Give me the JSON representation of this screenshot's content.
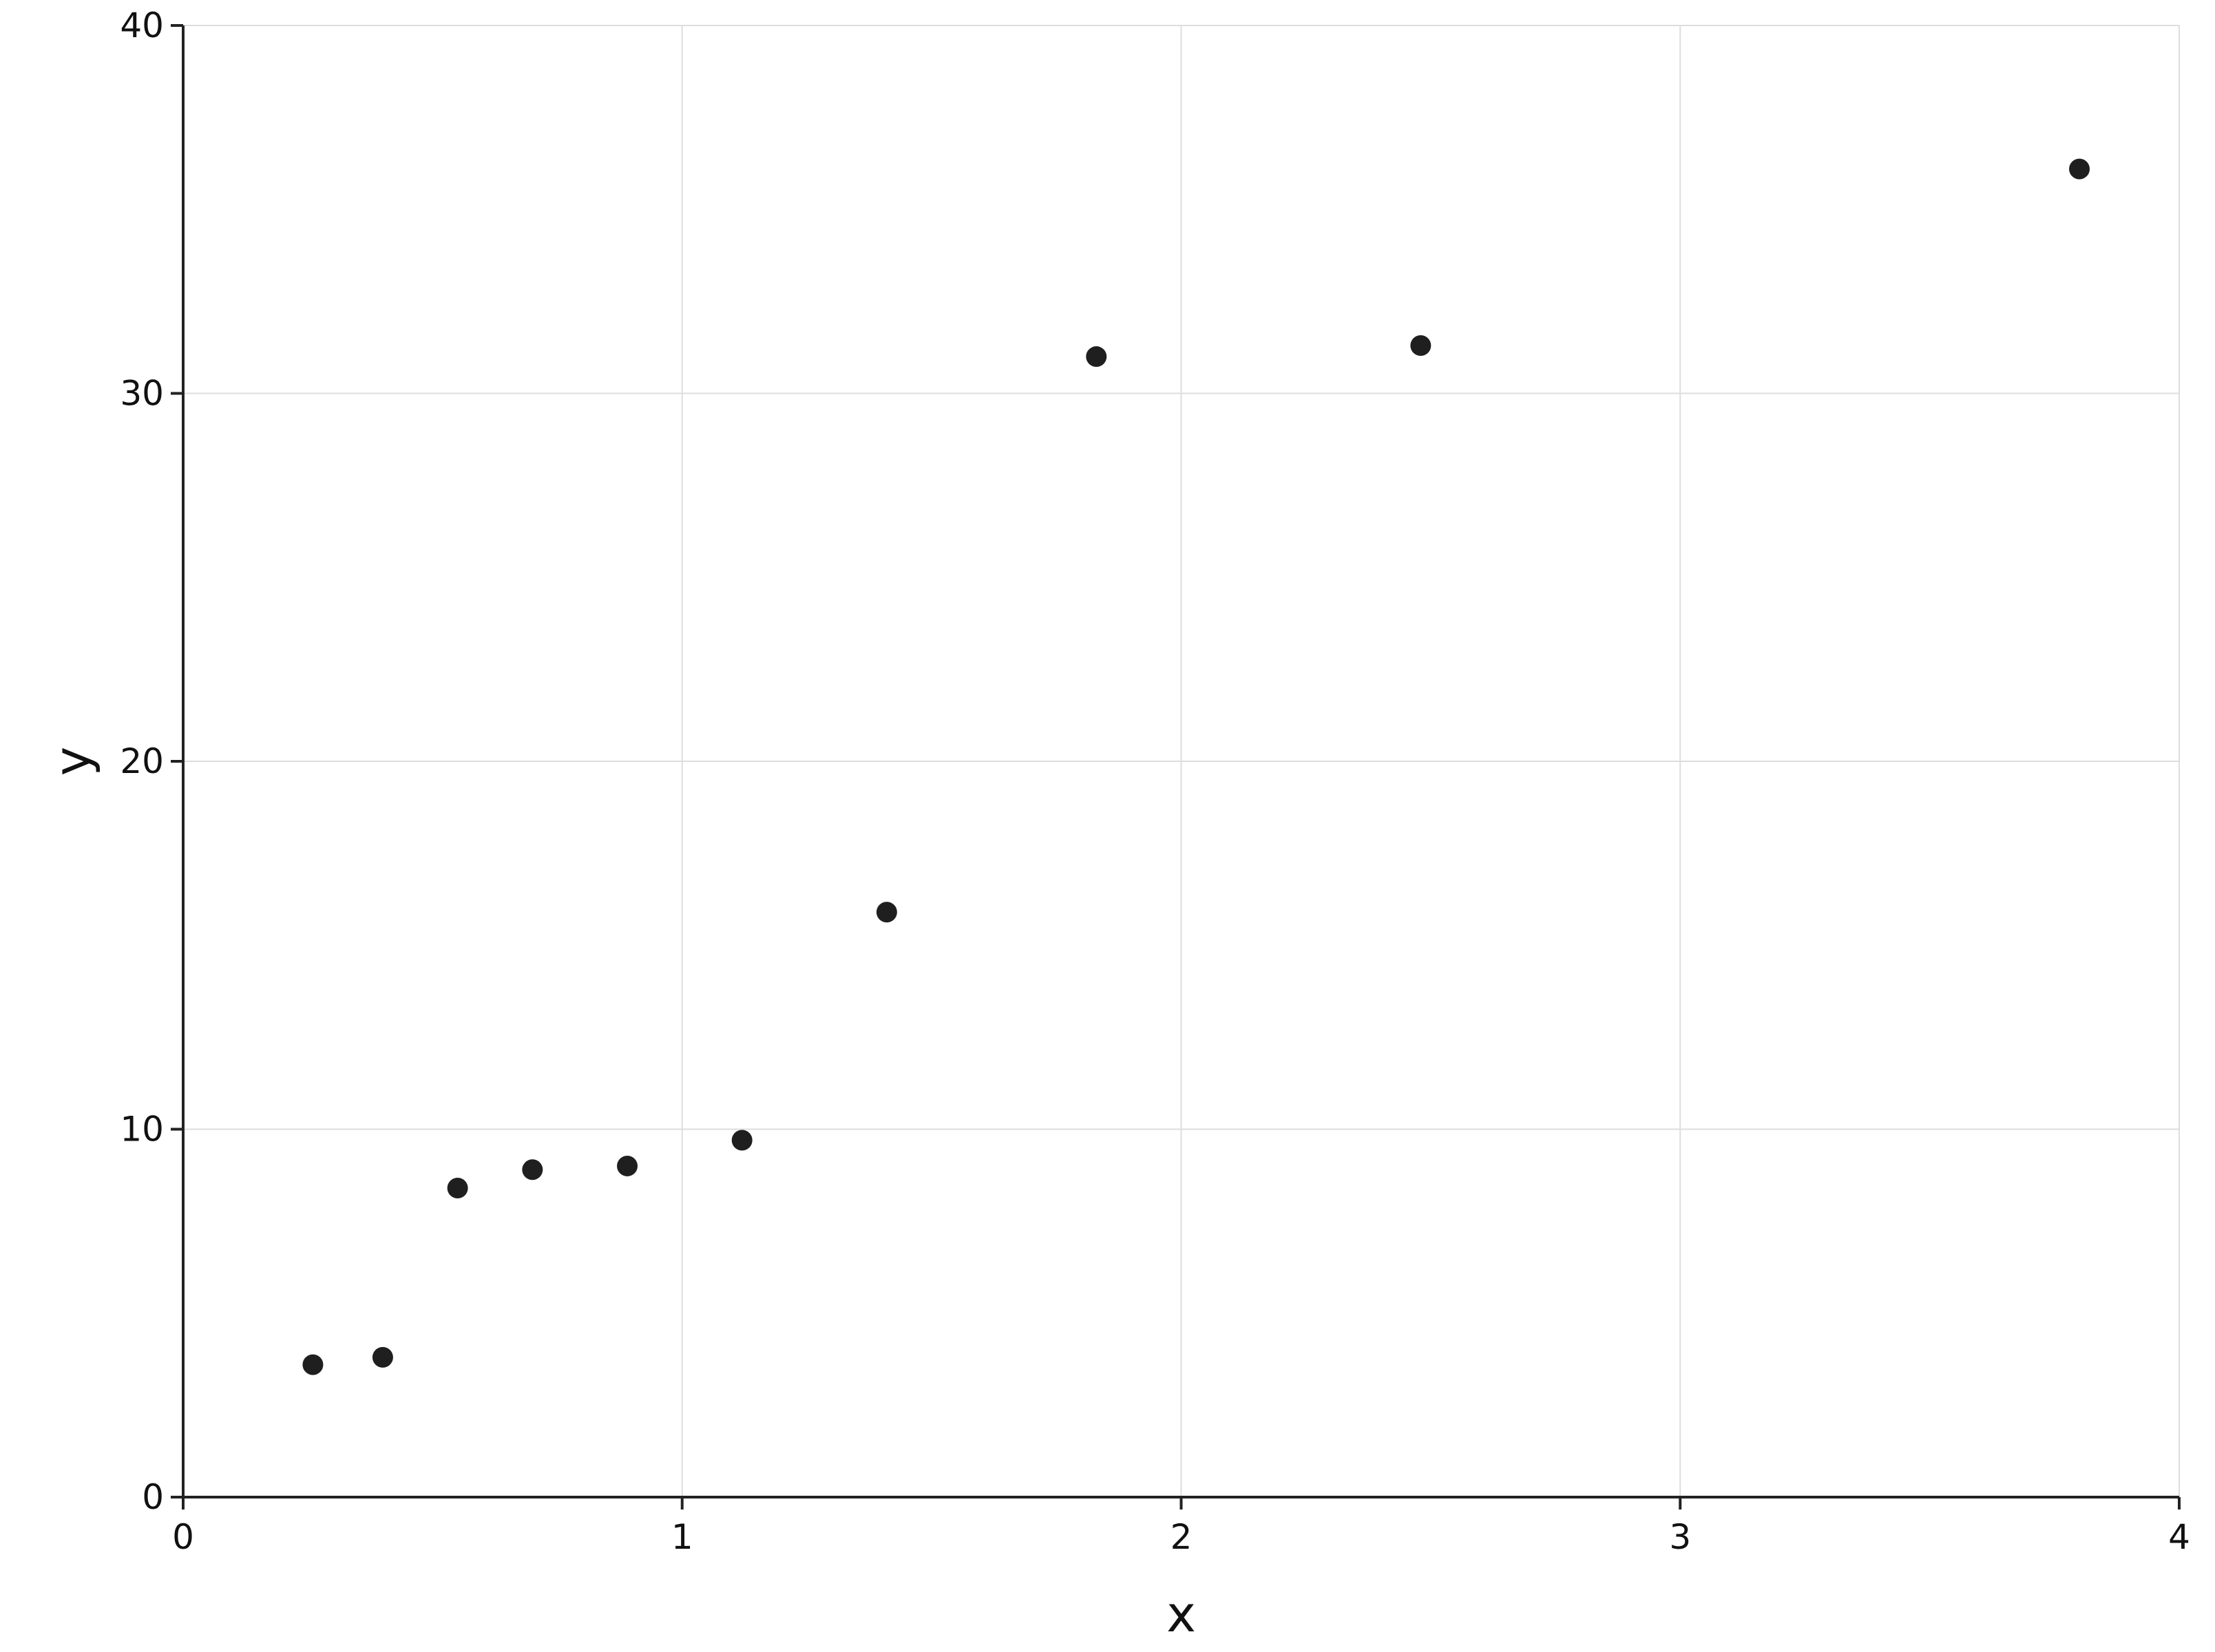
{
  "chart_data": {
    "type": "scatter",
    "title": "",
    "xlabel": "x",
    "ylabel": "y",
    "xlim": [
      0,
      4
    ],
    "ylim": [
      0,
      40
    ],
    "xticks": [
      0,
      1,
      2,
      3,
      4
    ],
    "yticks": [
      0,
      10,
      20,
      30,
      40
    ],
    "grid": true,
    "legend": "none",
    "marker_color": "#1f1f1f",
    "series": [
      {
        "x": [
          0.26,
          0.4,
          0.55,
          0.7,
          0.89,
          1.12,
          1.41,
          1.83,
          2.48,
          3.8
        ],
        "y": [
          3.6,
          3.8,
          8.4,
          8.9,
          9.0,
          9.7,
          15.9,
          31.0,
          31.3,
          36.1
        ]
      }
    ]
  }
}
